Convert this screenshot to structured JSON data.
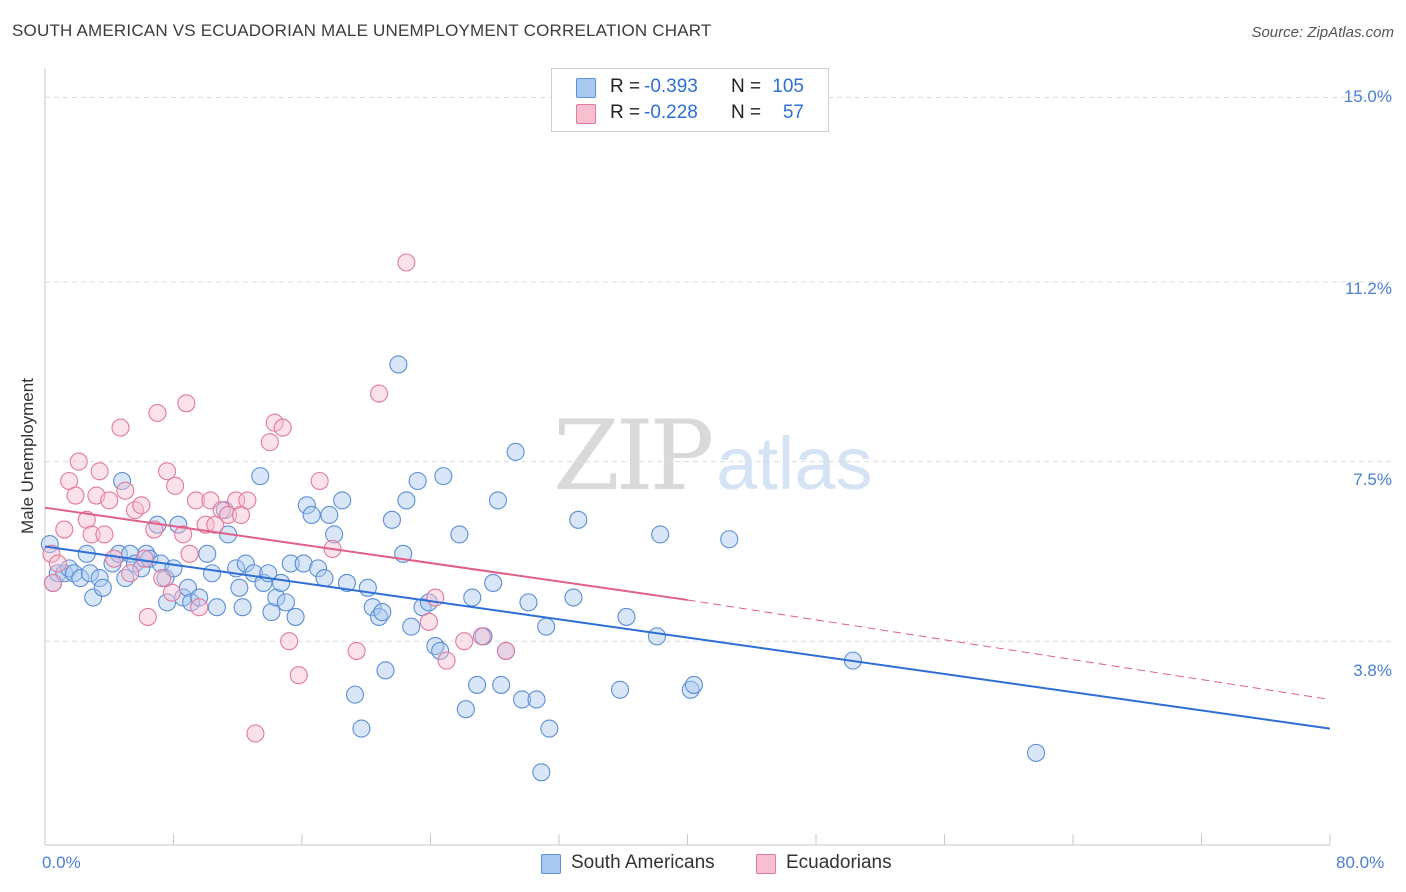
{
  "title": "SOUTH AMERICAN VS ECUADORIAN MALE UNEMPLOYMENT CORRELATION CHART",
  "source": "Source: ZipAtlas.com",
  "watermark": {
    "zip": "ZIP",
    "atlas": "atlas"
  },
  "legend": {
    "rows": [
      {
        "r_label": "R =",
        "r_value": "-0.393",
        "n_label": "N =",
        "n_value": "105",
        "color": "#a9c8f0",
        "border": "#5b8fd6"
      },
      {
        "r_label": "R =",
        "r_value": "-0.228",
        "n_label": "N =",
        "n_value": "57",
        "color": "#f7bfd0",
        "border": "#e27a9c"
      }
    ]
  },
  "bottom_legend": [
    {
      "label": "South Americans",
      "color": "#a9c8f0",
      "border": "#5b8fd6"
    },
    {
      "label": "Ecuadorians",
      "color": "#f7bfd0",
      "border": "#e27a9c"
    }
  ],
  "chart_data": {
    "type": "scatter",
    "title": "SOUTH AMERICAN VS ECUADORIAN MALE UNEMPLOYMENT CORRELATION CHART",
    "xlabel": "",
    "ylabel": "Male Unemployment",
    "xlim": [
      0,
      80
    ],
    "ylim": [
      -0.15,
      15.4
    ],
    "x_tick_labels": [
      "0.0%",
      "80.0%"
    ],
    "y_ticks": [
      3.8,
      7.5,
      11.2,
      15.0
    ],
    "y_tick_labels": [
      "3.8%",
      "7.5%",
      "11.2%",
      "15.0%"
    ],
    "grid": true,
    "series": [
      {
        "name": "South Americans",
        "color": "#5b8fd6",
        "fill": "#a9c8f0",
        "trend": {
          "x": [
            0,
            80
          ],
          "y": [
            5.75,
            2.0
          ],
          "style": "solid",
          "color": "#2e6fd6"
        },
        "points": [
          [
            0.5,
            5.0
          ],
          [
            0.8,
            5.2
          ],
          [
            1.2,
            5.2
          ],
          [
            1.5,
            5.3
          ],
          [
            1.8,
            5.2
          ],
          [
            2.2,
            5.1
          ],
          [
            2.6,
            5.6
          ],
          [
            2.8,
            5.2
          ],
          [
            3.0,
            4.7
          ],
          [
            3.4,
            5.1
          ],
          [
            3.6,
            4.9
          ],
          [
            4.2,
            5.4
          ],
          [
            4.6,
            5.6
          ],
          [
            4.8,
            7.1
          ],
          [
            5.0,
            5.1
          ],
          [
            5.3,
            5.6
          ],
          [
            5.6,
            5.4
          ],
          [
            6.0,
            5.3
          ],
          [
            6.3,
            5.6
          ],
          [
            6.5,
            5.5
          ],
          [
            7.0,
            6.2
          ],
          [
            7.2,
            5.4
          ],
          [
            7.5,
            5.1
          ],
          [
            7.6,
            4.6
          ],
          [
            8.0,
            5.3
          ],
          [
            8.3,
            6.2
          ],
          [
            8.6,
            4.7
          ],
          [
            8.9,
            4.9
          ],
          [
            9.1,
            4.6
          ],
          [
            9.6,
            4.7
          ],
          [
            10.1,
            5.6
          ],
          [
            10.4,
            5.2
          ],
          [
            10.7,
            4.5
          ],
          [
            11.2,
            6.5
          ],
          [
            11.4,
            6.0
          ],
          [
            11.9,
            5.3
          ],
          [
            12.1,
            4.9
          ],
          [
            12.3,
            4.5
          ],
          [
            12.5,
            5.4
          ],
          [
            13.0,
            5.2
          ],
          [
            13.4,
            7.2
          ],
          [
            13.6,
            5.0
          ],
          [
            13.9,
            5.2
          ],
          [
            14.1,
            4.4
          ],
          [
            14.4,
            4.7
          ],
          [
            14.7,
            5.0
          ],
          [
            15.0,
            4.6
          ],
          [
            15.3,
            5.4
          ],
          [
            15.6,
            4.3
          ],
          [
            16.1,
            5.4
          ],
          [
            16.3,
            6.6
          ],
          [
            16.6,
            6.4
          ],
          [
            17.0,
            5.3
          ],
          [
            17.4,
            5.1
          ],
          [
            17.7,
            6.4
          ],
          [
            18.0,
            6.0
          ],
          [
            18.5,
            6.7
          ],
          [
            18.8,
            5.0
          ],
          [
            19.3,
            2.7
          ],
          [
            19.7,
            2.0
          ],
          [
            20.1,
            4.9
          ],
          [
            20.4,
            4.5
          ],
          [
            20.8,
            4.3
          ],
          [
            21.0,
            4.4
          ],
          [
            21.2,
            3.2
          ],
          [
            21.6,
            6.3
          ],
          [
            22.0,
            9.5
          ],
          [
            22.3,
            5.6
          ],
          [
            22.5,
            6.7
          ],
          [
            22.8,
            4.1
          ],
          [
            23.2,
            7.1
          ],
          [
            23.5,
            4.5
          ],
          [
            23.9,
            4.6
          ],
          [
            24.3,
            3.7
          ],
          [
            24.6,
            3.6
          ],
          [
            24.8,
            7.2
          ],
          [
            25.8,
            6.0
          ],
          [
            26.2,
            2.4
          ],
          [
            26.6,
            4.7
          ],
          [
            26.9,
            2.9
          ],
          [
            27.3,
            3.9
          ],
          [
            27.9,
            5.0
          ],
          [
            28.2,
            6.7
          ],
          [
            28.4,
            2.9
          ],
          [
            28.7,
            3.6
          ],
          [
            29.3,
            7.7
          ],
          [
            29.7,
            2.6
          ],
          [
            30.1,
            4.6
          ],
          [
            30.6,
            2.6
          ],
          [
            30.9,
            1.1
          ],
          [
            31.2,
            4.1
          ],
          [
            31.4,
            2.0
          ],
          [
            32.9,
            4.7
          ],
          [
            33.2,
            6.3
          ],
          [
            35.8,
            2.8
          ],
          [
            36.2,
            4.3
          ],
          [
            38.1,
            3.9
          ],
          [
            38.3,
            6.0
          ],
          [
            40.2,
            2.8
          ],
          [
            40.4,
            2.9
          ],
          [
            42.6,
            5.9
          ],
          [
            50.3,
            3.4
          ],
          [
            61.7,
            1.5
          ],
          [
            0.3,
            5.8
          ]
        ]
      },
      {
        "name": "Ecuadorians",
        "color": "#e27a9c",
        "fill": "#f7bfd0",
        "trend": {
          "x": [
            0,
            40
          ],
          "y": [
            6.55,
            4.65
          ],
          "style": "solid",
          "extended_to": {
            "x": 80,
            "y": 2.6
          },
          "color": "#e0608a"
        },
        "points": [
          [
            0.4,
            5.6
          ],
          [
            0.5,
            5.0
          ],
          [
            0.8,
            5.4
          ],
          [
            1.2,
            6.1
          ],
          [
            1.5,
            7.1
          ],
          [
            1.9,
            6.8
          ],
          [
            2.1,
            7.5
          ],
          [
            2.6,
            6.3
          ],
          [
            2.9,
            6.0
          ],
          [
            3.2,
            6.8
          ],
          [
            3.4,
            7.3
          ],
          [
            3.7,
            6.0
          ],
          [
            4.0,
            6.7
          ],
          [
            4.3,
            5.5
          ],
          [
            4.7,
            8.2
          ],
          [
            5.0,
            6.9
          ],
          [
            5.3,
            5.2
          ],
          [
            5.6,
            6.5
          ],
          [
            6.0,
            6.6
          ],
          [
            6.2,
            5.5
          ],
          [
            6.4,
            4.3
          ],
          [
            6.8,
            6.1
          ],
          [
            7.0,
            8.5
          ],
          [
            7.3,
            5.1
          ],
          [
            7.6,
            7.3
          ],
          [
            7.9,
            4.8
          ],
          [
            8.1,
            7.0
          ],
          [
            8.6,
            6.0
          ],
          [
            8.8,
            8.7
          ],
          [
            9.0,
            5.6
          ],
          [
            9.4,
            6.7
          ],
          [
            9.6,
            4.5
          ],
          [
            10.0,
            6.2
          ],
          [
            10.3,
            6.7
          ],
          [
            10.6,
            6.2
          ],
          [
            11.0,
            6.5
          ],
          [
            11.4,
            6.4
          ],
          [
            11.9,
            6.7
          ],
          [
            12.2,
            6.4
          ],
          [
            12.6,
            6.7
          ],
          [
            13.1,
            1.9
          ],
          [
            14.0,
            7.9
          ],
          [
            14.3,
            8.3
          ],
          [
            14.8,
            8.2
          ],
          [
            15.2,
            3.8
          ],
          [
            15.8,
            3.1
          ],
          [
            17.1,
            7.1
          ],
          [
            17.9,
            5.7
          ],
          [
            19.4,
            3.6
          ],
          [
            20.8,
            8.9
          ],
          [
            22.5,
            11.6
          ],
          [
            23.9,
            4.2
          ],
          [
            24.3,
            4.7
          ],
          [
            25.0,
            3.4
          ],
          [
            26.1,
            3.8
          ],
          [
            27.2,
            3.9
          ],
          [
            28.7,
            3.6
          ]
        ]
      }
    ]
  }
}
